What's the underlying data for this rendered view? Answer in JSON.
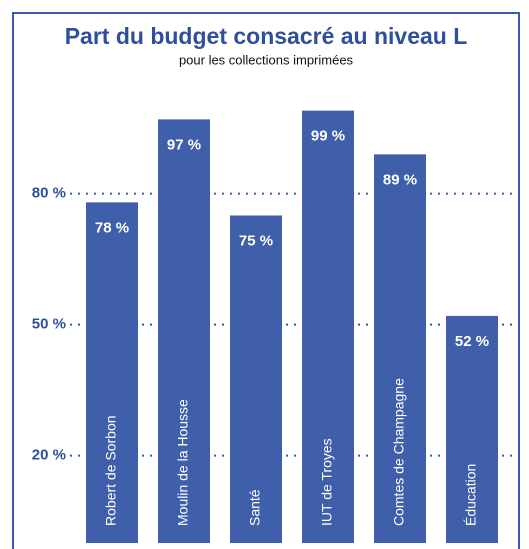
{
  "chart_data": {
    "type": "bar",
    "title": "Part du budget consacré au niveau L",
    "subtitle": "pour les collections imprimées",
    "categories": [
      "Robert de Sorbon",
      "Moulin de la Housse",
      "Santé",
      "IUT de Troyes",
      "Comtes de Champagne",
      "Éducation"
    ],
    "values": [
      78,
      97,
      75,
      99,
      89,
      52
    ],
    "value_labels": [
      "78 %",
      "97 %",
      "75 %",
      "99 %",
      "89 %",
      "52 %"
    ],
    "color": "#3f5faa",
    "ylim": [
      0,
      100
    ],
    "yticks": [
      {
        "value": 20,
        "label": "20 %"
      },
      {
        "value": 50,
        "label": "50 %"
      },
      {
        "value": 80,
        "label": "80 %"
      }
    ],
    "grid": true
  }
}
